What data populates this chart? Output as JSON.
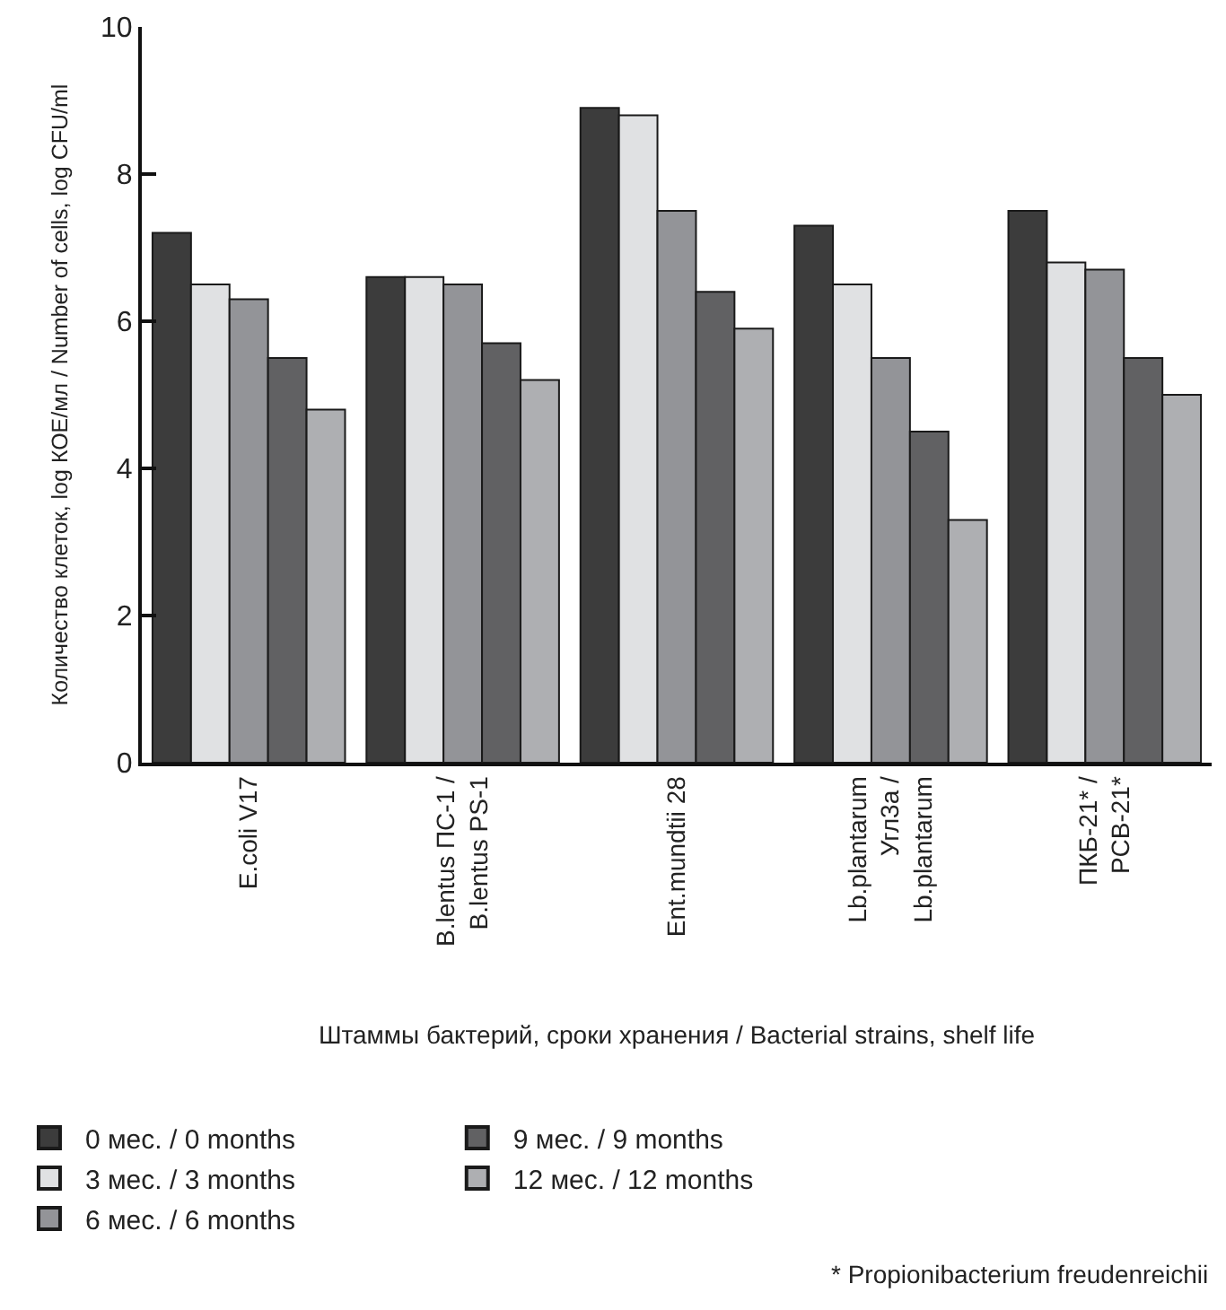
{
  "chart_data": {
    "type": "bar",
    "ylabel": "Количество клеток, log КОЕ/мл / Number of cells, log CFU/ml",
    "xlabel": "Штаммы бактерий, сроки хранения / Bacterial strains, shelf life",
    "categories": [
      "E.coli V17",
      "B.lentus ПС-1 /\nB.lentus PS-1",
      "Ent.mundtii 28",
      "Lb.plantarum\nУгл3а /\nLb.plantarum",
      "ПКБ-21* /\nPCB-21*"
    ],
    "series": [
      {
        "name": "0 мес. / 0 months",
        "color": "#3c3c3c",
        "values": [
          7.2,
          6.6,
          8.9,
          7.3,
          7.5
        ]
      },
      {
        "name": "3 мес. / 3 months",
        "color": "#e0e1e3",
        "values": [
          6.5,
          6.6,
          8.8,
          6.5,
          6.8
        ]
      },
      {
        "name": "6 мес. / 6 months",
        "color": "#939498",
        "values": [
          6.3,
          6.5,
          7.5,
          5.5,
          6.7
        ]
      },
      {
        "name": "9 мес. / 9 months",
        "color": "#616163",
        "values": [
          5.5,
          5.7,
          6.4,
          4.5,
          5.5
        ]
      },
      {
        "name": "12 мес. / 12 months",
        "color": "#aeafb2",
        "values": [
          4.8,
          5.2,
          5.9,
          3.3,
          5.0
        ]
      }
    ],
    "ylim": [
      0,
      10
    ],
    "yticks": [
      0,
      2,
      4,
      6,
      8,
      10
    ],
    "legend": "bottom",
    "annotations": [
      "* Propionibacterium freudenreichii"
    ]
  }
}
